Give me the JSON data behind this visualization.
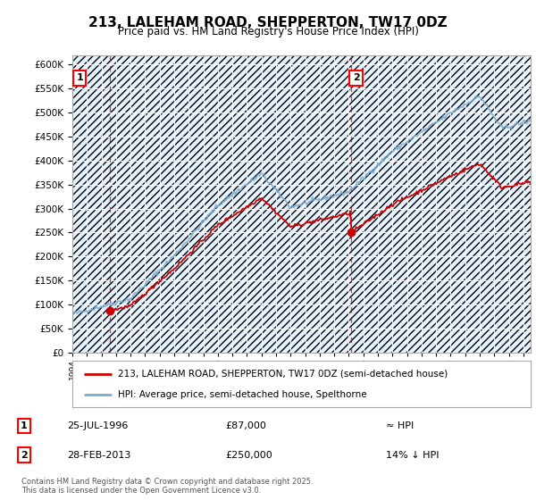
{
  "title": "213, LALEHAM ROAD, SHEPPERTON, TW17 0DZ",
  "subtitle": "Price paid vs. HM Land Registry's House Price Index (HPI)",
  "legend_line1": "213, LALEHAM ROAD, SHEPPERTON, TW17 0DZ (semi-detached house)",
  "legend_line2": "HPI: Average price, semi-detached house, Spelthorne",
  "annotation1_label": "1",
  "annotation1_date": "25-JUL-1996",
  "annotation1_price": "£87,000",
  "annotation1_hpi": "≈ HPI",
  "annotation2_label": "2",
  "annotation2_date": "28-FEB-2013",
  "annotation2_price": "£250,000",
  "annotation2_hpi": "14% ↓ HPI",
  "footer": "Contains HM Land Registry data © Crown copyright and database right 2025.\nThis data is licensed under the Open Government Licence v3.0.",
  "sale1_year": 1996.57,
  "sale1_price": 87000,
  "sale2_year": 2013.16,
  "sale2_price": 250000,
  "red_line_color": "#cc0000",
  "blue_line_color": "#7aaacc",
  "dashed_line_color": "#cc0000",
  "plot_bg_color": "#ddeeff",
  "ylim_min": 0,
  "ylim_max": 620000,
  "xmin": 1994,
  "xmax": 2025.5
}
